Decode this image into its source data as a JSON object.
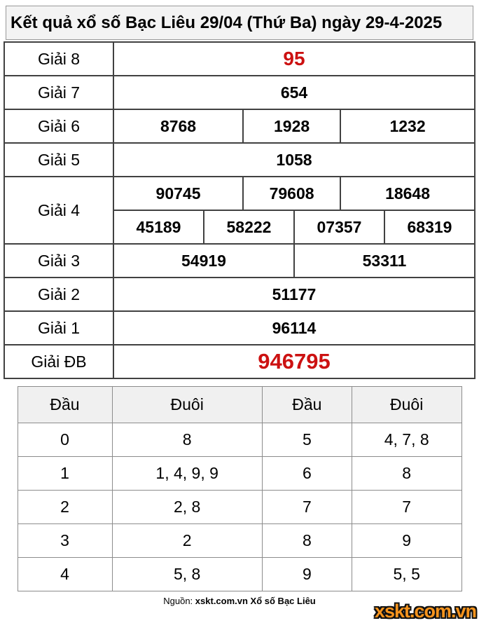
{
  "title": "Kết quả xổ số Bạc Liêu 29/04 (Thứ Ba) ngày 29-4-2025",
  "colors": {
    "highlight_red": "#cc1111",
    "logo_orange": "#f7941d"
  },
  "prizes": {
    "g8": {
      "label": "Giải 8",
      "value": "95"
    },
    "g7": {
      "label": "Giải 7",
      "value": "654"
    },
    "g6": {
      "label": "Giải 6",
      "values": [
        "8768",
        "1928",
        "1232"
      ]
    },
    "g5": {
      "label": "Giải 5",
      "value": "1058"
    },
    "g4": {
      "label": "Giải 4",
      "row1": [
        "90745",
        "79608",
        "18648"
      ],
      "row2": [
        "45189",
        "58222",
        "07357",
        "68319"
      ]
    },
    "g3": {
      "label": "Giải 3",
      "values": [
        "54919",
        "53311"
      ]
    },
    "g2": {
      "label": "Giải 2",
      "value": "51177"
    },
    "g1": {
      "label": "Giải 1",
      "value": "96114"
    },
    "gdb": {
      "label": "Giải ĐB",
      "value": "946795"
    }
  },
  "head_tail": {
    "headers": [
      "Đầu",
      "Đuôi",
      "Đầu",
      "Đuôi"
    ],
    "rows": [
      [
        "0",
        "8",
        "5",
        "4, 7, 8"
      ],
      [
        "1",
        "1, 4, 9, 9",
        "6",
        "8"
      ],
      [
        "2",
        "2, 8",
        "7",
        "7"
      ],
      [
        "3",
        "2",
        "8",
        "9"
      ],
      [
        "4",
        "5, 8",
        "9",
        "5, 5"
      ]
    ]
  },
  "footer": {
    "source_prefix": "Nguồn:",
    "source_bold": "xskt.com.vn Xổ số Bạc Liêu",
    "logo": "xskt.com.vn"
  }
}
